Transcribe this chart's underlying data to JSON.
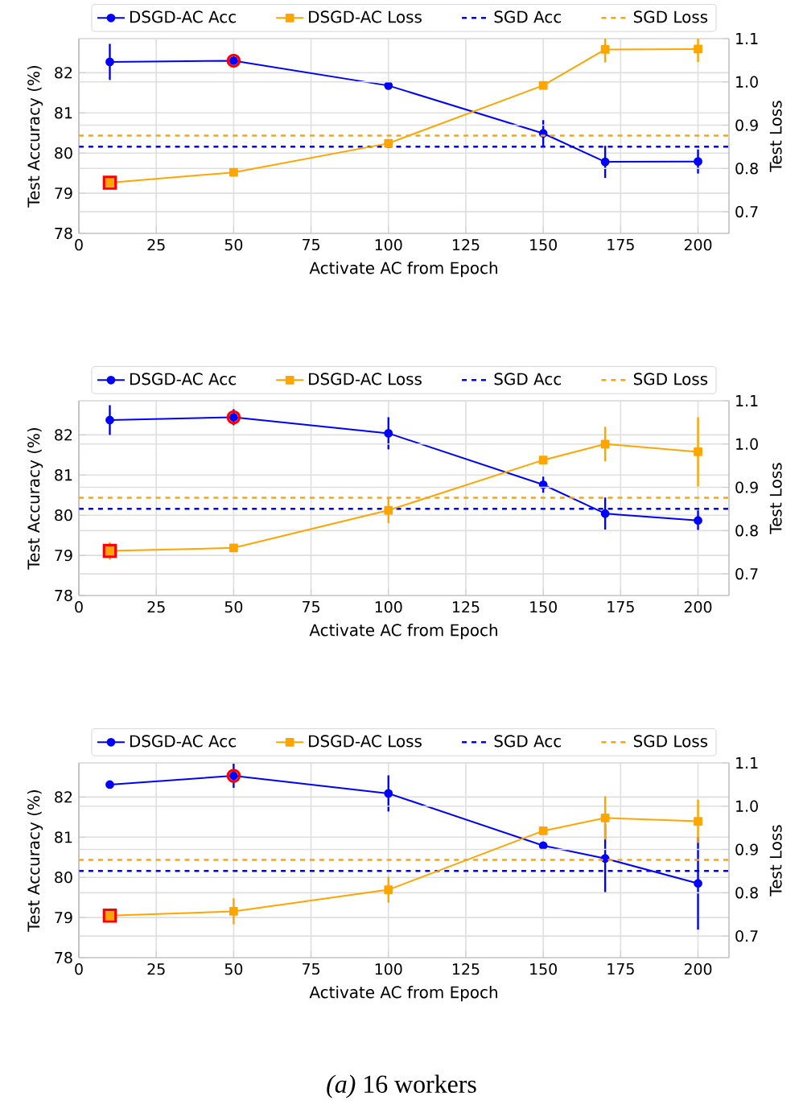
{
  "chart_data": [
    {
      "type": "line",
      "xlabel": "Activate AC from Epoch",
      "ylabel": "Test Accuracy (%)",
      "y2label": "Test Loss",
      "x": [
        10,
        50,
        100,
        150,
        170,
        200
      ],
      "xlim": [
        0,
        210
      ],
      "xticks": [
        0,
        25,
        50,
        75,
        100,
        125,
        150,
        175,
        200
      ],
      "ylim": [
        78,
        82.85
      ],
      "yticks": [
        78,
        79,
        80,
        81,
        82
      ],
      "y2lim": [
        0.65,
        1.1
      ],
      "y2ticks": [
        {
          "value": 0.7,
          "label": "0.7"
        },
        {
          "value": 0.8,
          "label": "0.8"
        },
        {
          "value": 0.9,
          "label": "0.9"
        },
        {
          "value": 1.0,
          "label": "1.0"
        },
        {
          "value": 1.1,
          "label": "1.1"
        }
      ],
      "grid": true,
      "legend": "top",
      "series": [
        {
          "name": "DSGD-AC Acc",
          "color": "#0000ff",
          "marker": "circle",
          "values": [
            82.27,
            82.3,
            81.68,
            80.49,
            79.78,
            79.79
          ],
          "errors": [
            0.45,
            null,
            0.05,
            0.33,
            0.4,
            0.3
          ]
        },
        {
          "name": "DSGD-AC Loss",
          "color": "#ffa500",
          "marker": "square",
          "axis": "y2",
          "values": [
            0.767,
            0.791,
            0.858,
            0.992,
            1.075,
            1.076
          ],
          "errors": [
            null,
            null,
            null,
            null,
            0.03,
            0.03
          ]
        },
        {
          "type": "scatter",
          "color": "#ff0000",
          "marker": "circle",
          "values": [
            null,
            82.3,
            null,
            null,
            null,
            null
          ]
        },
        {
          "type": "scatter",
          "color": "#ff0000",
          "marker": "square",
          "axis": "y2",
          "values": [
            0.767,
            null,
            null,
            null,
            null,
            null
          ]
        }
      ],
      "ref_lines": [
        {
          "axis": "y",
          "value": 80.16,
          "label": "SGD Acc",
          "color": "#0000ff",
          "line_style": "dashed"
        },
        {
          "axis": "y2",
          "value": 0.876,
          "label": "SGD Loss",
          "color": "#ffa500",
          "line_style": "dashed"
        }
      ]
    },
    {
      "type": "line",
      "xlabel": "Activate AC from Epoch",
      "ylabel": "Test Accuracy (%)",
      "y2label": "Test Loss",
      "x": [
        10,
        50,
        100,
        150,
        170,
        200
      ],
      "xlim": [
        0,
        210
      ],
      "xticks": [
        0,
        25,
        50,
        75,
        100,
        125,
        150,
        175,
        200
      ],
      "ylim": [
        78,
        82.85
      ],
      "yticks": [
        78,
        79,
        80,
        81,
        82
      ],
      "y2lim": [
        0.65,
        1.1
      ],
      "y2ticks": [
        {
          "value": 0.7,
          "label": "0.7"
        },
        {
          "value": 0.8,
          "label": "0.8"
        },
        {
          "value": 0.9,
          "label": "0.9"
        },
        {
          "value": 1.0,
          "label": "1.0"
        },
        {
          "value": 1.1,
          "label": "1.1"
        }
      ],
      "grid": true,
      "legend": "top",
      "series": [
        {
          "name": "DSGD-AC Acc",
          "color": "#0000ff",
          "marker": "circle",
          "values": [
            82.37,
            82.44,
            82.04,
            80.76,
            80.04,
            79.87
          ],
          "errors": [
            0.37,
            0.2,
            0.4,
            0.2,
            0.4,
            0.25
          ]
        },
        {
          "name": "DSGD-AC Loss",
          "color": "#ffa500",
          "marker": "square",
          "axis": "y2",
          "values": [
            0.753,
            0.76,
            0.847,
            0.963,
            1.0,
            0.982
          ],
          "errors": [
            0.02,
            null,
            0.03,
            null,
            0.04,
            0.08
          ]
        },
        {
          "type": "scatter",
          "color": "#ff0000",
          "marker": "circle",
          "values": [
            null,
            82.44,
            null,
            null,
            null,
            null
          ]
        },
        {
          "type": "scatter",
          "color": "#ff0000",
          "marker": "square",
          "axis": "y2",
          "values": [
            0.753,
            null,
            null,
            null,
            null,
            null
          ]
        }
      ],
      "ref_lines": [
        {
          "axis": "y",
          "value": 80.16,
          "label": "SGD Acc",
          "color": "#0000ff",
          "line_style": "dashed"
        },
        {
          "axis": "y2",
          "value": 0.876,
          "label": "SGD Loss",
          "color": "#ffa500",
          "line_style": "dashed"
        }
      ]
    },
    {
      "type": "line",
      "xlabel": "Activate AC from Epoch",
      "ylabel": "Test Accuracy (%)",
      "y2label": "Test Loss",
      "x": [
        10,
        50,
        100,
        150,
        170,
        200
      ],
      "xlim": [
        0,
        210
      ],
      "xticks": [
        0,
        25,
        50,
        75,
        100,
        125,
        150,
        175,
        200
      ],
      "ylim": [
        78,
        82.85
      ],
      "yticks": [
        78,
        79,
        80,
        81,
        82
      ],
      "y2lim": [
        0.65,
        1.1
      ],
      "y2ticks": [
        {
          "value": 0.7,
          "label": "0.7"
        },
        {
          "value": 0.8,
          "label": "0.8"
        },
        {
          "value": 0.9,
          "label": "0.9"
        },
        {
          "value": 1.0,
          "label": "1.0"
        },
        {
          "value": 1.1,
          "label": "1.1"
        }
      ],
      "grid": true,
      "legend": "top",
      "series": [
        {
          "name": "DSGD-AC Acc",
          "color": "#0000ff",
          "marker": "circle",
          "values": [
            82.31,
            82.53,
            82.09,
            80.79,
            80.47,
            79.85
          ],
          "errors": [
            null,
            0.3,
            0.45,
            0.1,
            0.85,
            1.15
          ]
        },
        {
          "name": "DSGD-AC Loss",
          "color": "#ffa500",
          "marker": "square",
          "axis": "y2",
          "values": [
            0.747,
            0.757,
            0.807,
            0.943,
            0.973,
            0.965
          ],
          "errors": [
            null,
            0.03,
            0.03,
            null,
            0.05,
            0.05
          ]
        },
        {
          "type": "scatter",
          "color": "#ff0000",
          "marker": "circle",
          "values": [
            null,
            82.53,
            null,
            null,
            null,
            null
          ]
        },
        {
          "type": "scatter",
          "color": "#ff0000",
          "marker": "square",
          "axis": "y2",
          "values": [
            0.747,
            null,
            null,
            null,
            null,
            null
          ]
        }
      ],
      "ref_lines": [
        {
          "axis": "y",
          "value": 80.16,
          "label": "SGD Acc",
          "color": "#0000ff",
          "line_style": "dashed"
        },
        {
          "axis": "y2",
          "value": 0.876,
          "label": "SGD Loss",
          "color": "#ffa500",
          "line_style": "dashed"
        }
      ],
      "annotations": [
        "*(a)* 16 workers"
      ]
    }
  ]
}
